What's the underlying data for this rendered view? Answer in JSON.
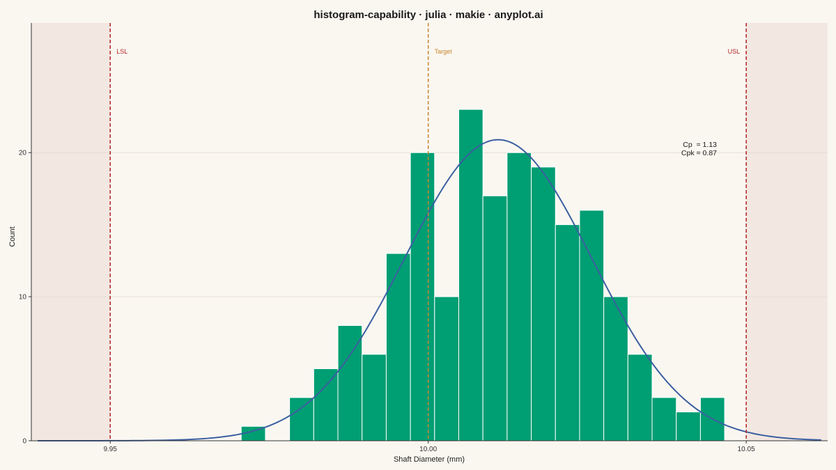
{
  "chart_data": {
    "type": "bar",
    "title": "histogram-capability · julia · makie · anyplot.ai",
    "xlabel": "Shaft Diameter (mm)",
    "ylabel": "Count",
    "xlim": [
      9.9376,
      10.0628
    ],
    "ylim": [
      0,
      29
    ],
    "x_ticks": [
      {
        "value": 9.95,
        "label": "9.95"
      },
      {
        "value": 10.0,
        "label": "10.00"
      },
      {
        "value": 10.05,
        "label": "10.05"
      }
    ],
    "y_ticks": [
      {
        "value": 0,
        "label": "0"
      },
      {
        "value": 10,
        "label": "10"
      },
      {
        "value": 20,
        "label": "20"
      }
    ],
    "grid": true,
    "bin_width": 0.0038,
    "bins": [
      {
        "x0": 9.9706,
        "count": 1
      },
      {
        "x0": 9.9744,
        "count": 0
      },
      {
        "x0": 9.9782,
        "count": 3
      },
      {
        "x0": 9.982,
        "count": 5
      },
      {
        "x0": 9.9858,
        "count": 8
      },
      {
        "x0": 9.9896,
        "count": 6
      },
      {
        "x0": 9.9934,
        "count": 13
      },
      {
        "x0": 9.9972,
        "count": 20
      },
      {
        "x0": 10.001,
        "count": 10
      },
      {
        "x0": 10.0048,
        "count": 23
      },
      {
        "x0": 10.0086,
        "count": 17
      },
      {
        "x0": 10.0124,
        "count": 20
      },
      {
        "x0": 10.0162,
        "count": 19
      },
      {
        "x0": 10.02,
        "count": 15
      },
      {
        "x0": 10.0238,
        "count": 16
      },
      {
        "x0": 10.0276,
        "count": 10
      },
      {
        "x0": 10.0314,
        "count": 6
      },
      {
        "x0": 10.0352,
        "count": 3
      },
      {
        "x0": 10.039,
        "count": 2
      },
      {
        "x0": 10.0428,
        "count": 3
      }
    ],
    "normal_curve": {
      "mean": 10.011,
      "sd": 0.0147,
      "peak": 20.9,
      "x_range": [
        9.9386,
        10.0618
      ]
    },
    "spec_limits": [
      {
        "name": "LSL",
        "label": "LSL",
        "value": 9.95,
        "color": "#b22222"
      },
      {
        "name": "Target",
        "label": "Target",
        "value": 10.0,
        "color": "#c9852e"
      },
      {
        "name": "USL",
        "label": "USL",
        "value": 10.05,
        "color": "#b22222"
      }
    ],
    "statistics": {
      "cp_line": "Cp  = 1.13",
      "cpk_line": "Cpk = 0.87"
    }
  },
  "colors": {
    "background": "#faf7f1",
    "bar_fill": "#009e73",
    "bar_edge": "#ffffff",
    "curve": "#3b5fa0",
    "out_of_spec_fill": "#f2e7e1",
    "grid": "#e6ded2",
    "axis": "#333333"
  }
}
